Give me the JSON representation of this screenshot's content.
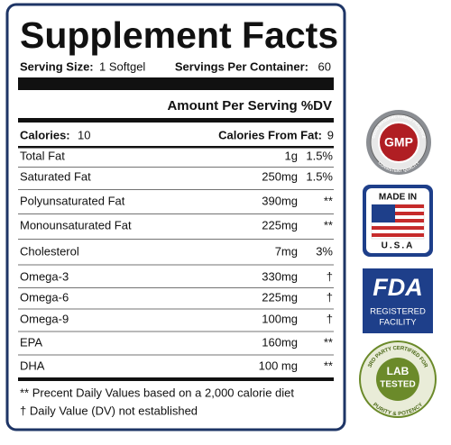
{
  "panel": {
    "title": "Supplement Facts",
    "serving_size": {
      "label": "Serving Size:",
      "value": "1 Softgel"
    },
    "servings_per_container": {
      "label": "Servings Per Container:",
      "value": "60"
    },
    "amount_header": "Amount Per Serving %DV",
    "calories": {
      "label": "Calories:",
      "value": "10"
    },
    "calories_from_fat": {
      "label": "Calories From Fat:",
      "value": "9"
    },
    "rows": [
      {
        "name": "Total Fat",
        "amount": "1g",
        "dv": "1.5%"
      },
      {
        "name": "Saturated Fat",
        "amount": "250mg",
        "dv": "1.5%"
      },
      {
        "name": "Polyunsaturated Fat",
        "amount": "390mg",
        "dv": "**"
      },
      {
        "name": "Monounsaturated Fat",
        "amount": "225mg",
        "dv": "**"
      },
      {
        "name": "Cholesterol",
        "amount": "7mg",
        "dv": "3%"
      },
      {
        "name": "Omega-3",
        "amount": "330mg",
        "dv": "†"
      },
      {
        "name": "Omega-6",
        "amount": "225mg",
        "dv": "†"
      },
      {
        "name": "Omega-9",
        "amount": "100mg",
        "dv": "†"
      },
      {
        "name": "EPA",
        "amount": "160mg",
        "dv": "**"
      },
      {
        "name": "DHA",
        "amount": "100 mg",
        "dv": "**"
      }
    ],
    "footnotes": [
      "** Precent Daily Values based on a 2,000 calorie diet",
      "† Daily Value (DV) not established"
    ]
  },
  "badges": {
    "gmp": {
      "label": "GMP",
      "top_arc": "GOOD MANUFACTURING PRACTICE",
      "bottom_arc": "CONSISTENT QUALITY"
    },
    "usa": {
      "top": "MADE IN",
      "bottom": "U.S.A"
    },
    "fda": {
      "logo": "FDA",
      "line1": "REGISTERED",
      "line2": "FACILITY"
    },
    "lab": {
      "line1": "LAB",
      "line2": "TESTED",
      "top_arc": "3RD PARTY CERTIFIED FOR",
      "bottom_arc": "PURITY & POTENCY"
    }
  }
}
